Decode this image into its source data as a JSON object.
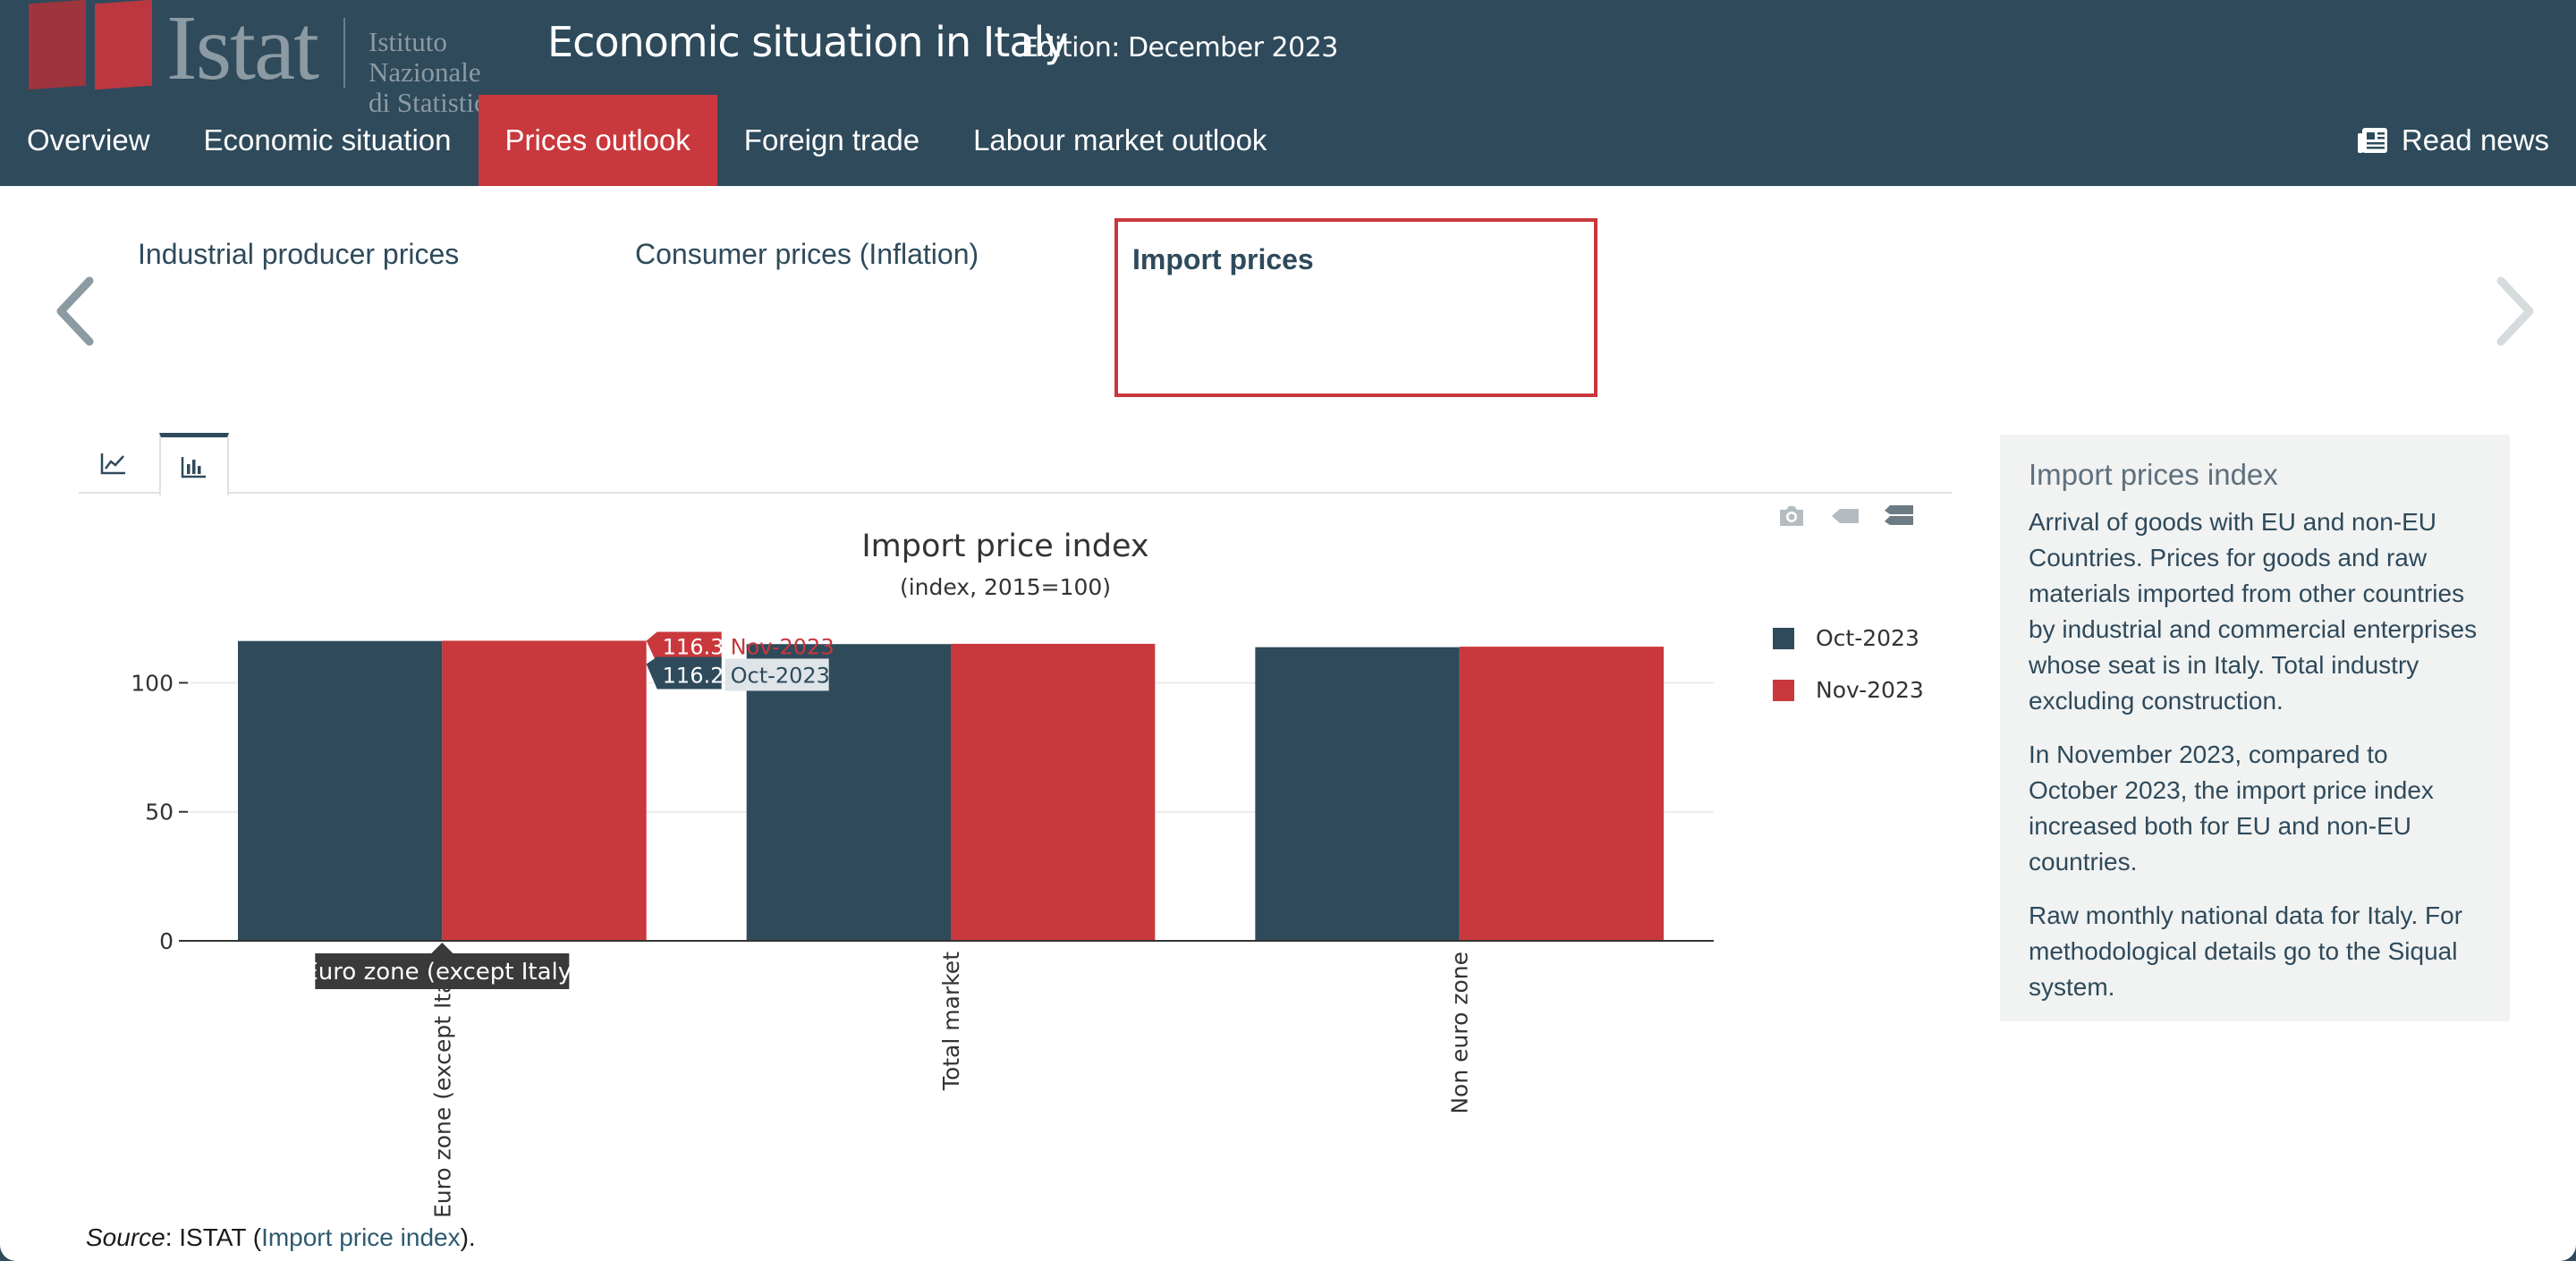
{
  "header": {
    "logo_word": "Istat",
    "logo_sub_line1": "Istituto Nazionale",
    "logo_sub_line2": "di Statistica",
    "title": "Economic situation in Italy",
    "edition": "Edition: December 2023",
    "read_news": "Read news"
  },
  "nav": [
    "Overview",
    "Economic situation",
    "Prices outlook",
    "Foreign trade",
    "Labour market outlook"
  ],
  "nav_active": "Prices outlook",
  "sub_tabs": [
    "Industrial producer prices",
    "Consumer prices (Inflation)",
    "Import prices"
  ],
  "colors": {
    "header": "#2e4a5b",
    "accent": "#c8383d",
    "oct": "#2e4a5b",
    "nov": "#c8383d"
  },
  "chart_tabs": {
    "line_icon": "line-chart-icon",
    "bar_icon": "bar-chart-icon"
  },
  "modebar": [
    "camera-icon",
    "tag-icon",
    "compare-icon"
  ],
  "chart_data": {
    "type": "bar",
    "title": "Import price index",
    "subtitle": "(index, 2015=100)",
    "categories": [
      "Euro zone (except Italy)",
      "Total market",
      "Non euro zone"
    ],
    "series": [
      {
        "name": "Oct-2023",
        "values": [
          116.2,
          115.0,
          113.8
        ]
      },
      {
        "name": "Nov-2023",
        "values": [
          116.3,
          115.1,
          114.0
        ]
      }
    ],
    "yticks": [
      "0",
      "50",
      "100"
    ],
    "ylim": [
      0,
      122
    ],
    "grid": true,
    "legend_position": "right",
    "hover": {
      "category_label": "Euro zone (except Italy)",
      "nov_value": "116.3",
      "nov_label": "Nov-2023",
      "oct_value": "116.2",
      "oct_label": "Oct-2023"
    }
  },
  "info": {
    "title": "Import prices index",
    "p1": "Arrival of goods with EU and non-EU Countries. Prices for goods and raw materials imported from other countries by industrial and commercial enterprises whose seat is in Italy. Total industry excluding construction.",
    "p2": "In November 2023, compared to October 2023, the import price index increased both for EU and non-EU countries.",
    "p3": "Raw monthly national data for Italy. For methodological details go to the Siqual system."
  },
  "source": {
    "label": "Source",
    "text": ": ISTAT (",
    "link": "Import price index",
    "end": ")."
  }
}
